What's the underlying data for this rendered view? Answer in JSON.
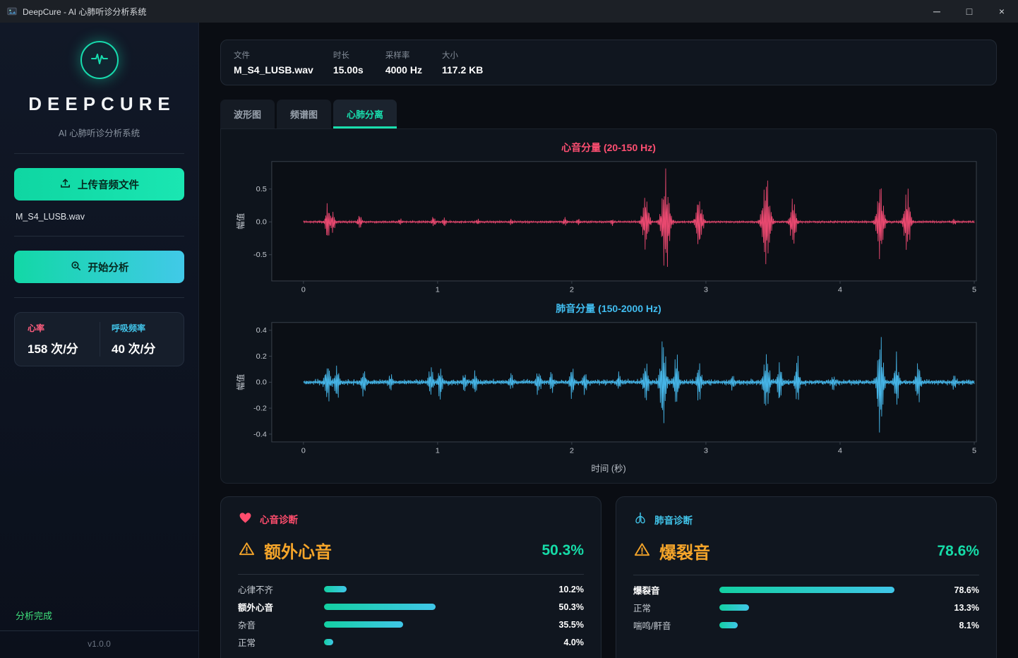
{
  "window": {
    "title": "DeepCure - AI 心肺听诊分析系统",
    "controls": {
      "minimize": "─",
      "maximize": "□",
      "close": "×"
    }
  },
  "sidebar": {
    "brand": "DEEPCURE",
    "subtitle": "AI 心肺听诊分析系统",
    "upload_button": "上传音频文件",
    "filename": "M_S4_LUSB.wav",
    "analyze_button": "开始分析",
    "stats": {
      "heart_rate_label": "心率",
      "heart_rate_value": "158 次/分",
      "resp_rate_label": "呼吸频率",
      "resp_rate_value": "40 次/分"
    },
    "status": "分析完成",
    "version": "v1.0.0"
  },
  "file_info": {
    "items": [
      {
        "label": "文件",
        "value": "M_S4_LUSB.wav"
      },
      {
        "label": "时长",
        "value": "15.00s"
      },
      {
        "label": "采样率",
        "value": "4000 Hz"
      },
      {
        "label": "大小",
        "value": "117.2 KB"
      }
    ]
  },
  "tabs": [
    {
      "label": "波形图",
      "active": false
    },
    {
      "label": "频谱图",
      "active": false
    },
    {
      "label": "心肺分离",
      "active": true
    }
  ],
  "chart_data": [
    {
      "type": "line",
      "title": "心音分量 (20-150 Hz)",
      "color": "#e8486f",
      "ylabel": "幅值",
      "xlabel": "",
      "yticks": [
        0.5,
        0.0,
        -0.5
      ],
      "ylim": [
        -0.9,
        0.92
      ],
      "xticks": [
        0,
        1,
        2,
        3,
        4,
        5
      ],
      "xlim": [
        0,
        5
      ],
      "grid": false,
      "noise_floor": 0.015,
      "seed": 7,
      "bursts": [
        [
          0.18,
          0.3,
          0.012
        ],
        [
          0.22,
          0.22,
          0.01
        ],
        [
          0.42,
          0.14,
          0.01
        ],
        [
          0.72,
          0.05,
          0.008
        ],
        [
          0.97,
          0.09,
          0.01
        ],
        [
          1.05,
          0.07,
          0.008
        ],
        [
          1.3,
          0.05,
          0.008
        ],
        [
          1.55,
          0.04,
          0.008
        ],
        [
          1.95,
          0.08,
          0.01
        ],
        [
          2.05,
          0.06,
          0.008
        ],
        [
          2.3,
          0.06,
          0.008
        ],
        [
          2.55,
          0.48,
          0.018
        ],
        [
          2.7,
          0.9,
          0.022
        ],
        [
          2.95,
          0.5,
          0.018
        ],
        [
          3.45,
          0.8,
          0.022
        ],
        [
          3.65,
          0.45,
          0.016
        ],
        [
          4.3,
          0.65,
          0.02
        ],
        [
          4.5,
          0.55,
          0.018
        ],
        [
          4.85,
          0.06,
          0.008
        ]
      ]
    },
    {
      "type": "line",
      "title": "肺音分量 (150-2000 Hz)",
      "color": "#45b4e6",
      "ylabel": "幅值",
      "xlabel": "时间 (秒)",
      "yticks": [
        0.4,
        0.2,
        0.0,
        -0.2,
        -0.4
      ],
      "ylim": [
        -0.46,
        0.46
      ],
      "xticks": [
        0,
        1,
        2,
        3,
        4,
        5
      ],
      "xlim": [
        0,
        5
      ],
      "grid": false,
      "noise_floor": 0.02,
      "seed": 13,
      "bursts": [
        [
          0.18,
          0.16,
          0.015
        ],
        [
          0.25,
          0.14,
          0.012
        ],
        [
          0.45,
          0.12,
          0.012
        ],
        [
          0.65,
          0.06,
          0.01
        ],
        [
          0.95,
          0.14,
          0.012
        ],
        [
          1.02,
          0.16,
          0.01
        ],
        [
          1.2,
          0.09,
          0.01
        ],
        [
          1.28,
          0.11,
          0.01
        ],
        [
          1.55,
          0.06,
          0.01
        ],
        [
          1.75,
          0.11,
          0.012
        ],
        [
          1.85,
          0.09,
          0.01
        ],
        [
          2.0,
          0.13,
          0.012
        ],
        [
          2.1,
          0.1,
          0.01
        ],
        [
          2.35,
          0.07,
          0.01
        ],
        [
          2.55,
          0.18,
          0.014
        ],
        [
          2.68,
          0.42,
          0.016
        ],
        [
          2.78,
          0.26,
          0.012
        ],
        [
          2.95,
          0.18,
          0.012
        ],
        [
          3.2,
          0.06,
          0.01
        ],
        [
          3.45,
          0.28,
          0.016
        ],
        [
          3.55,
          0.18,
          0.012
        ],
        [
          3.68,
          0.22,
          0.012
        ],
        [
          3.95,
          0.06,
          0.01
        ],
        [
          4.3,
          0.44,
          0.016
        ],
        [
          4.42,
          0.22,
          0.012
        ],
        [
          4.58,
          0.2,
          0.012
        ],
        [
          4.85,
          0.05,
          0.01
        ]
      ]
    }
  ],
  "cards": [
    {
      "header": "心音诊断",
      "icon": "heart-icon",
      "diagnosis": "额外心音",
      "confidence": "50.3%",
      "rows": [
        {
          "label": "心律不齐",
          "pct": 10.2,
          "value": "10.2%",
          "highlight": false
        },
        {
          "label": "额外心音",
          "pct": 50.3,
          "value": "50.3%",
          "highlight": true
        },
        {
          "label": "杂音",
          "pct": 35.5,
          "value": "35.5%",
          "highlight": false
        },
        {
          "label": "正常",
          "pct": 4.0,
          "value": "4.0%",
          "highlight": false
        }
      ]
    },
    {
      "header": "肺音诊断",
      "icon": "lungs-icon",
      "diagnosis": "爆裂音",
      "confidence": "78.6%",
      "rows": [
        {
          "label": "爆裂音",
          "pct": 78.6,
          "value": "78.6%",
          "highlight": true
        },
        {
          "label": "正常",
          "pct": 13.3,
          "value": "13.3%",
          "highlight": false
        },
        {
          "label": "喘鸣/鼾音",
          "pct": 8.1,
          "value": "8.1%",
          "highlight": false
        }
      ]
    }
  ],
  "colors": {
    "accent_teal": "#17dcae",
    "accent_cyan": "#41c9e8",
    "heart_pink": "#ff4d6d",
    "lung_blue": "#45b4e6",
    "warning_orange": "#f5a52a",
    "success_green": "#3fe07c"
  }
}
